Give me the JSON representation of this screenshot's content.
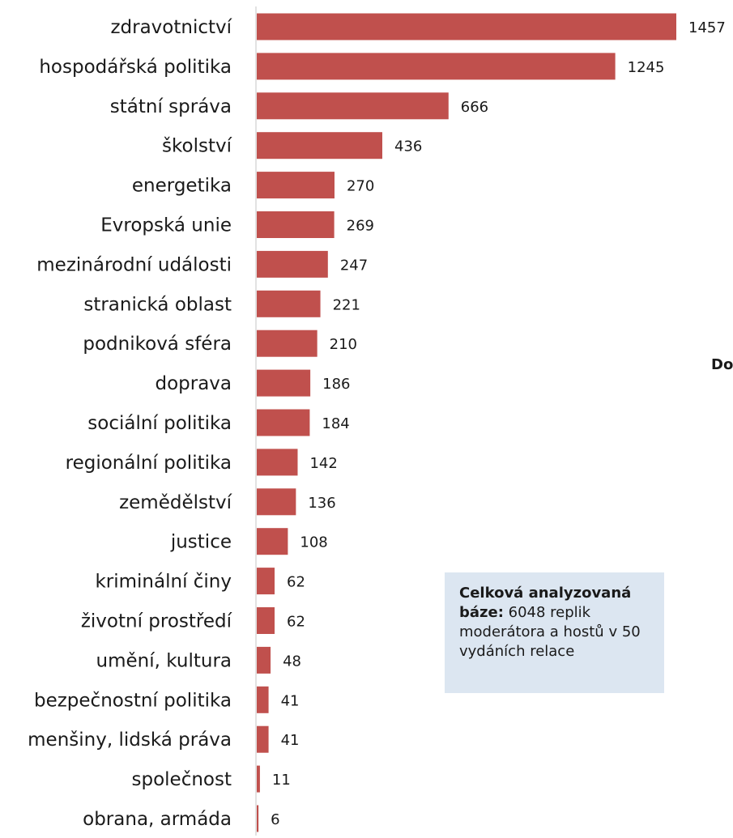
{
  "chart_data": {
    "type": "bar",
    "orientation": "horizontal",
    "categories": [
      "zdravotnictví",
      "hospodářská politika",
      "státní správa",
      "školství",
      "energetika",
      "Evropská unie",
      "mezinárodní události",
      "stranická oblast",
      "podniková sféra",
      "doprava",
      "sociální politika",
      "regionální politika",
      "zemědělství",
      "justice",
      "kriminální činy",
      "životní prostředí",
      "umění, kultura",
      "bezpečnostní politika",
      "menšiny, lidská práva",
      "společnost",
      "obrana, armáda"
    ],
    "values": [
      1457,
      1245,
      666,
      436,
      270,
      269,
      247,
      221,
      210,
      186,
      184,
      142,
      136,
      108,
      62,
      62,
      48,
      41,
      41,
      11,
      6
    ],
    "xlim": [
      0,
      1457
    ],
    "bar_color": "#c0504d",
    "axis_color": "#d9d9d9",
    "grid": false,
    "legend": "none",
    "data_labels": true
  },
  "side_label": "Do",
  "note": {
    "bold": "Celková analyzovaná báze:",
    "text": " 6048 replik moderátora a hostů v 50 vydáních relace"
  },
  "colors": {
    "note_background": "#dce6f1",
    "text": "#1a1a1a"
  }
}
